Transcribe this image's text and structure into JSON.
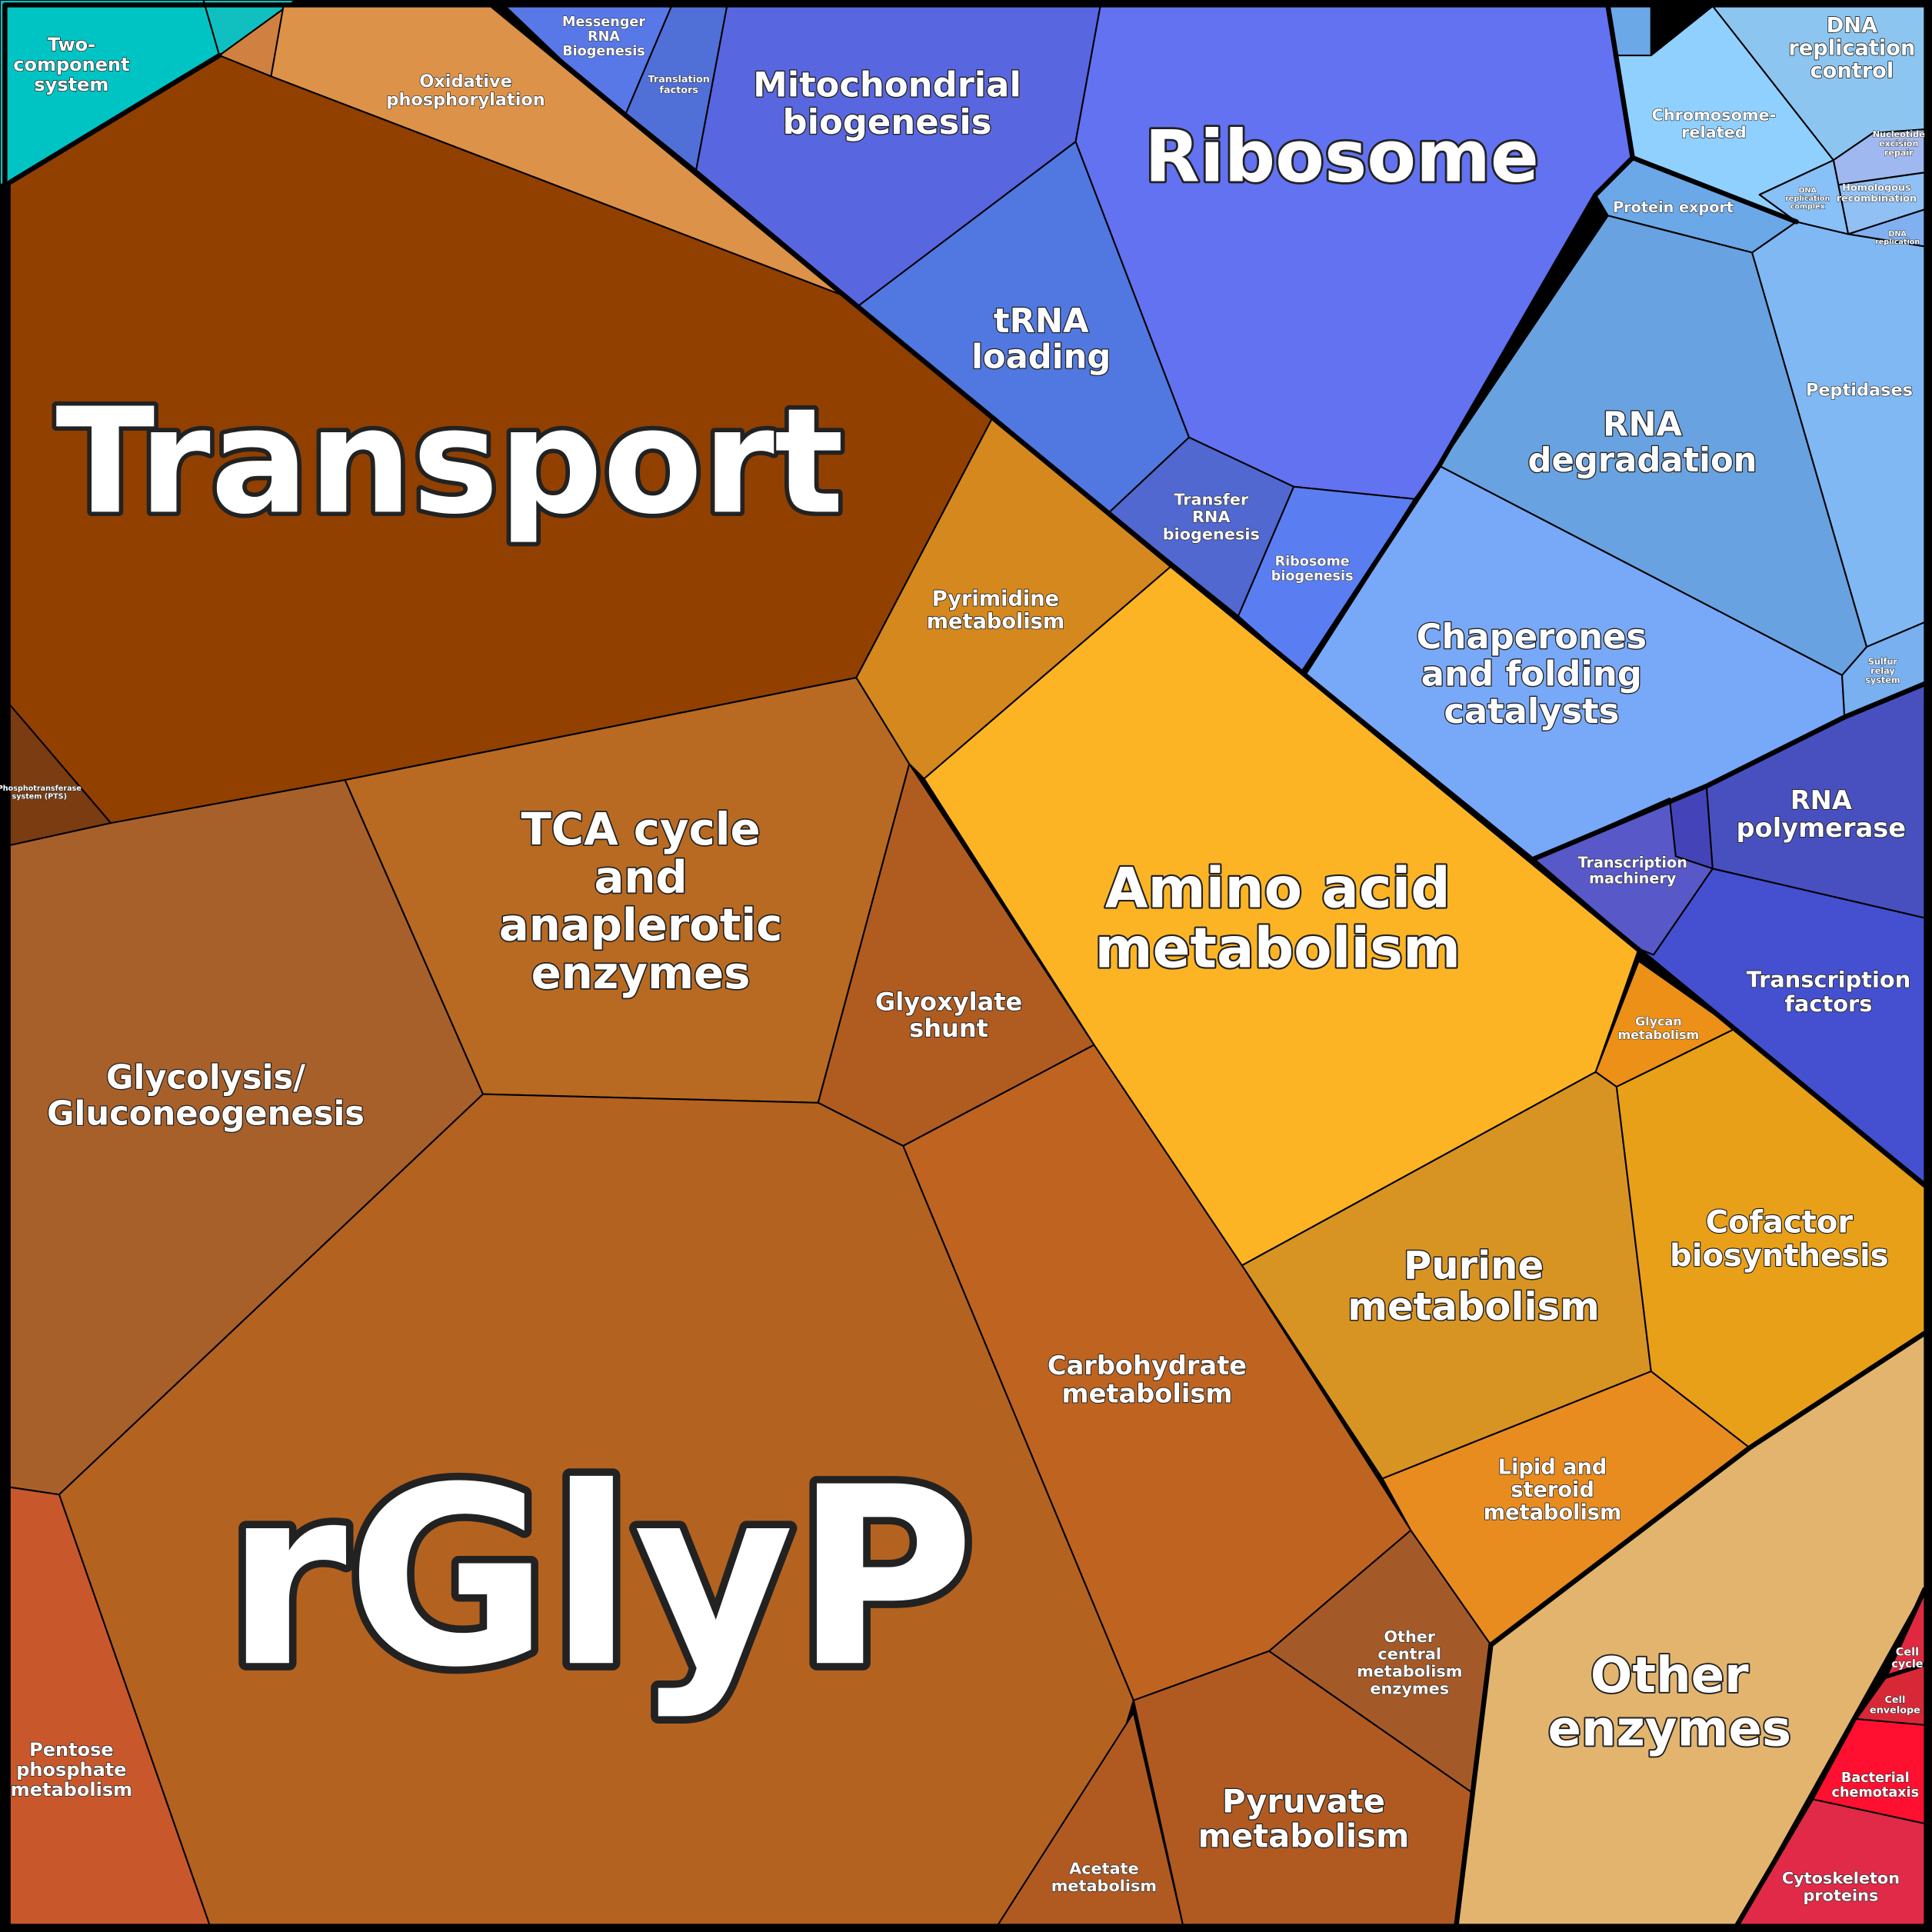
{
  "cells": [
    {
      "lines": [
        "Two-",
        "component",
        "system"
      ]
    },
    {
      "lines": [
        "Oxidative",
        "phosphorylation"
      ]
    },
    {
      "lines": [
        "Transport"
      ]
    },
    {
      "lines": [
        "Phosphotransferase",
        "system (PTS)"
      ]
    },
    {
      "lines": [
        "Glycolysis/",
        "Gluconeogenesis"
      ]
    },
    {
      "lines": [
        "TCA cycle",
        "and",
        "anaplerotic",
        "enzymes"
      ]
    },
    {
      "lines": [
        "Glyoxylate",
        "shunt"
      ]
    },
    {
      "lines": [
        "Pyrimidine",
        "metabolism"
      ]
    },
    {
      "lines": [
        "rGlyP"
      ]
    },
    {
      "lines": [
        "Pentose",
        "phosphate",
        "metabolism"
      ]
    },
    {
      "lines": [
        "Carbohydrate",
        "metabolism"
      ]
    },
    {
      "lines": [
        "Acetate",
        "metabolism"
      ]
    },
    {
      "lines": [
        "Pyruvate",
        "metabolism"
      ]
    },
    {
      "lines": [
        "Other",
        "central",
        "metabolism",
        "enzymes"
      ]
    },
    {
      "lines": [
        "Amino acid",
        "metabolism"
      ]
    },
    {
      "lines": [
        "Glycan",
        "metabolism"
      ]
    },
    {
      "lines": [
        "Purine",
        "metabolism"
      ]
    },
    {
      "lines": [
        "Cofactor",
        "biosynthesis"
      ]
    },
    {
      "lines": [
        "Lipid and",
        "steroid",
        "metabolism"
      ]
    },
    {
      "lines": [
        "Other",
        "enzymes"
      ]
    },
    {
      "lines": [
        "Cell",
        "cycle"
      ]
    },
    {
      "lines": [
        "Cell",
        "envelope"
      ]
    },
    {
      "lines": [
        "Bacterial",
        "chemotaxis"
      ]
    },
    {
      "lines": [
        "Cytoskeleton",
        "proteins"
      ]
    },
    {
      "lines": [
        "Messenger",
        "RNA",
        "Biogenesis"
      ]
    },
    {
      "lines": [
        "Translation",
        "factors"
      ]
    },
    {
      "lines": [
        "Mitochondrial",
        "biogenesis"
      ]
    },
    {
      "lines": [
        "Ribosome"
      ]
    },
    {
      "lines": [
        "tRNA",
        "loading"
      ]
    },
    {
      "lines": [
        "Transfer",
        "RNA",
        "biogenesis"
      ]
    },
    {
      "lines": [
        "Ribosome",
        "biogenesis"
      ]
    },
    {
      "lines": [
        "DNA",
        "replication",
        "control"
      ]
    },
    {
      "lines": [
        "Chromosome-",
        "related"
      ]
    },
    {
      "lines": [
        "Protein export"
      ]
    },
    {
      "lines": [
        "RNA",
        "degradation"
      ]
    },
    {
      "lines": [
        "Peptidases"
      ]
    },
    {
      "lines": [
        "Chaperones",
        "and folding",
        "catalysts"
      ]
    },
    {
      "lines": [
        "Sulfur",
        "relay",
        "system"
      ]
    },
    {
      "lines": [
        "RNA",
        "polymerase"
      ]
    },
    {
      "lines": [
        "Transcription",
        "machinery"
      ]
    },
    {
      "lines": [
        "Transcription",
        "factors"
      ]
    },
    {
      "lines": [
        "Nucleotide",
        "excision",
        "repair"
      ]
    },
    {
      "lines": [
        "Homologous",
        "recombination"
      ]
    },
    {
      "lines": [
        "DNA",
        "replication",
        "complex"
      ]
    },
    {
      "lines": [
        "DNA",
        "replication"
      ]
    }
  ]
}
